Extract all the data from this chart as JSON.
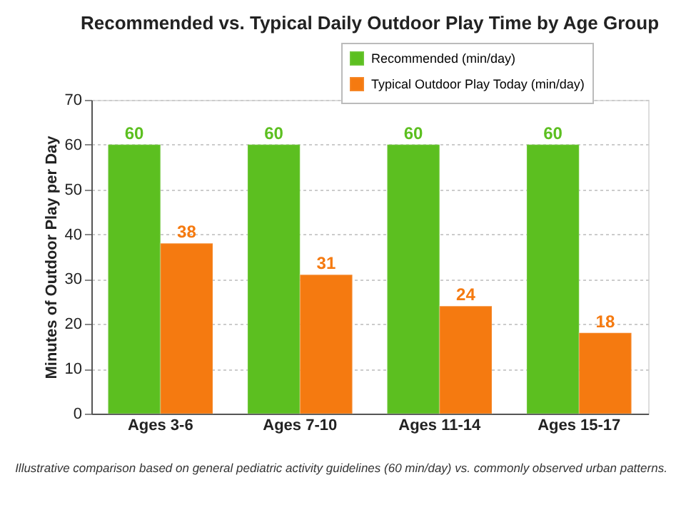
{
  "chart_data": {
    "type": "bar",
    "title": "Recommended vs. Typical Daily Outdoor Play Time by Age Group",
    "ylabel": "Minutes of Outdoor Play per Day",
    "categories": [
      "Ages 3-6",
      "Ages 7-10",
      "Ages 11-14",
      "Ages 15-17"
    ],
    "series": [
      {
        "name": "Recommended (min/day)",
        "color": "#5cbf20",
        "values": [
          60,
          60,
          60,
          60
        ]
      },
      {
        "name": "Typical Outdoor Play Today (min/day)",
        "color": "#f57a10",
        "values": [
          38,
          31,
          24,
          18
        ]
      }
    ],
    "ylim": [
      0,
      70
    ],
    "yticks": [
      0,
      10,
      20,
      30,
      40,
      50,
      60,
      70
    ],
    "grid": "y",
    "legend": "top right",
    "data_labels": true,
    "annotations": [
      "Illustrative comparison based on general pediatric activity guidelines (60 min/day) vs. commonly observed urban patterns."
    ]
  }
}
